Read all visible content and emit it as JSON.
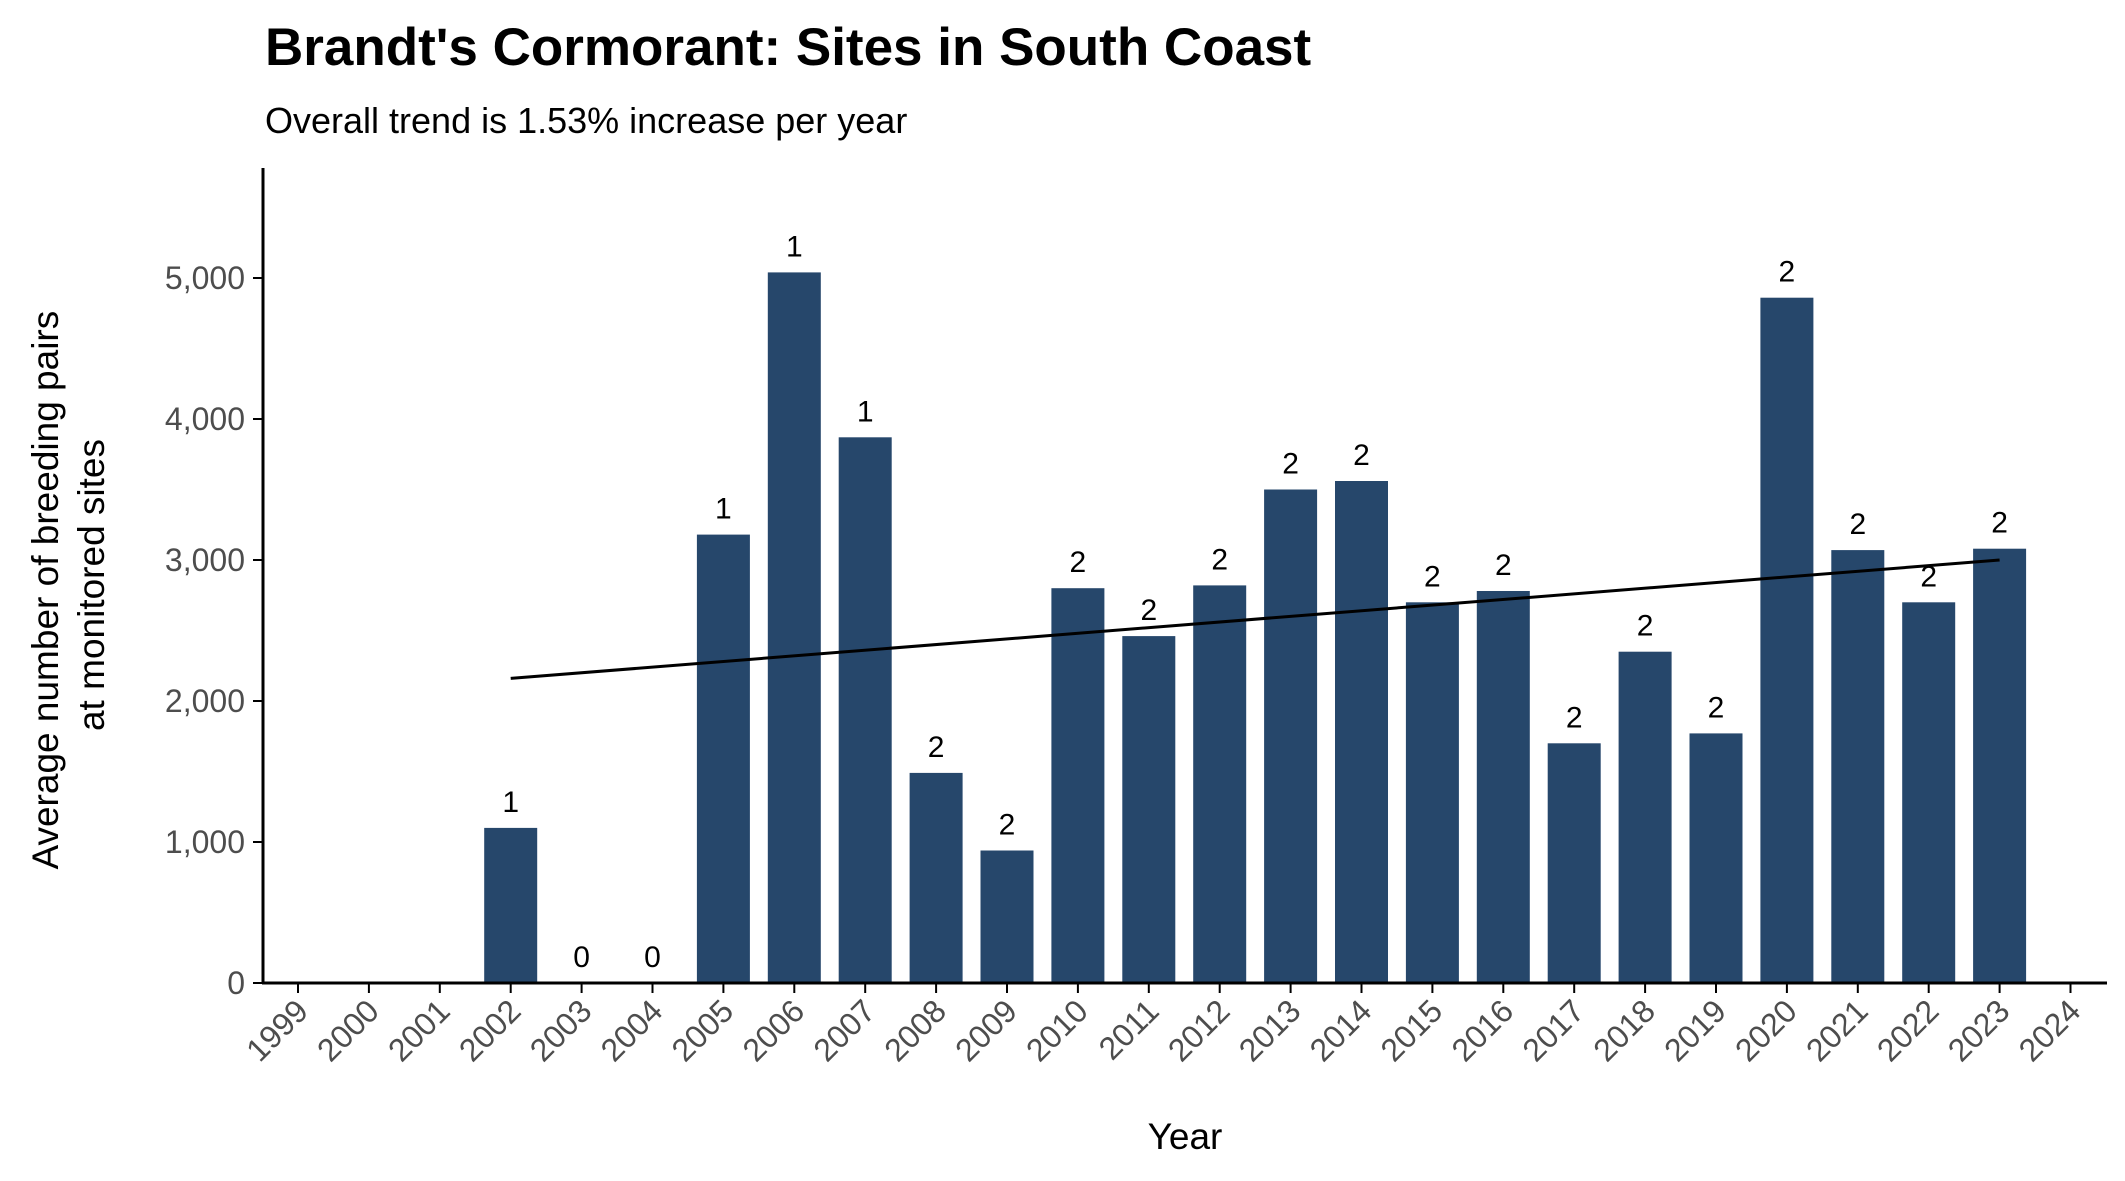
{
  "chart_data": {
    "type": "bar",
    "title": "Brandt's Cormorant: Sites in South Coast",
    "subtitle": "Overall trend is 1.53% increase per year",
    "xlabel": "Year",
    "ylabel_lines": [
      "Average number of breeding pairs",
      "at monitored sites"
    ],
    "categories": [
      "1999",
      "2000",
      "2001",
      "2002",
      "2003",
      "2004",
      "2005",
      "2006",
      "2007",
      "2008",
      "2009",
      "2010",
      "2011",
      "2012",
      "2013",
      "2014",
      "2015",
      "2016",
      "2017",
      "2018",
      "2019",
      "2020",
      "2021",
      "2022",
      "2023",
      "2024"
    ],
    "values": [
      null,
      null,
      null,
      1100,
      0,
      0,
      3180,
      5040,
      3870,
      1490,
      940,
      2800,
      2460,
      2820,
      3500,
      3560,
      2700,
      2780,
      1700,
      2350,
      1770,
      4860,
      3070,
      2700,
      3080,
      null
    ],
    "site_counts": [
      null,
      null,
      null,
      "1",
      "0",
      "0",
      "1",
      "1",
      "1",
      "2",
      "2",
      "2",
      "2",
      "2",
      "2",
      "2",
      "2",
      "2",
      "2",
      "2",
      "2",
      "2",
      "2",
      "2",
      "2",
      null
    ],
    "y_ticks": [
      0,
      1000,
      2000,
      3000,
      4000,
      5000
    ],
    "y_tick_labels": [
      "0",
      "1,000",
      "2,000",
      "3,000",
      "4,000",
      "5,000"
    ],
    "ylim": [
      0,
      5800
    ],
    "trend_line": {
      "x": [
        "2002",
        "2023"
      ],
      "y": [
        2160,
        3000
      ]
    },
    "bar_color": "#26476b",
    "trend_color": "#000000",
    "grid": false,
    "legend": "none"
  }
}
